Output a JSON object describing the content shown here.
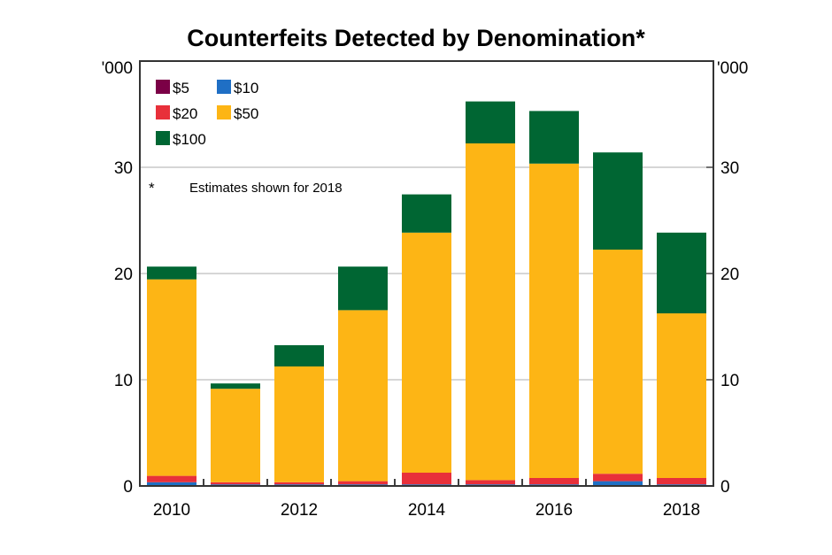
{
  "chart_data": {
    "type": "bar",
    "stacked": true,
    "title": "Counterfeits Detected by Denomination*",
    "ylabel_left": "'000",
    "ylabel_right": "'000",
    "ylim": [
      0,
      40
    ],
    "yticks": [
      0,
      10,
      20,
      30
    ],
    "grid": true,
    "legend_placement": "top-left",
    "note": "Estimates shown for 2018",
    "note_marker": "*",
    "categories": [
      "2010",
      "2011",
      "2012",
      "2013",
      "2014",
      "2015",
      "2016",
      "2017",
      "2018"
    ],
    "xtick_labels": [
      "2010",
      "",
      "2012",
      "",
      "2014",
      "",
      "2016",
      "",
      "2018"
    ],
    "series": [
      {
        "name": "$5",
        "color": "#7B0046",
        "values": [
          0.05,
          0.05,
          0.05,
          0.05,
          0.05,
          0.05,
          0.05,
          0.05,
          0.05
        ]
      },
      {
        "name": "$10",
        "color": "#1F6FC5",
        "values": [
          0.3,
          0.1,
          0.1,
          0.1,
          0.1,
          0.1,
          0.1,
          0.4,
          0.1
        ]
      },
      {
        "name": "$20",
        "color": "#E8303A",
        "values": [
          0.6,
          0.2,
          0.2,
          0.3,
          1.1,
          0.4,
          0.6,
          0.7,
          0.6
        ]
      },
      {
        "name": "$50",
        "color": "#FDB515",
        "values": [
          18.5,
          8.8,
          10.9,
          16.1,
          22.6,
          31.7,
          29.6,
          21.1,
          15.5
        ]
      },
      {
        "name": "$100",
        "color": "#006633",
        "values": [
          1.2,
          0.5,
          2.0,
          4.1,
          3.6,
          3.95,
          4.95,
          9.15,
          7.6
        ]
      }
    ]
  }
}
